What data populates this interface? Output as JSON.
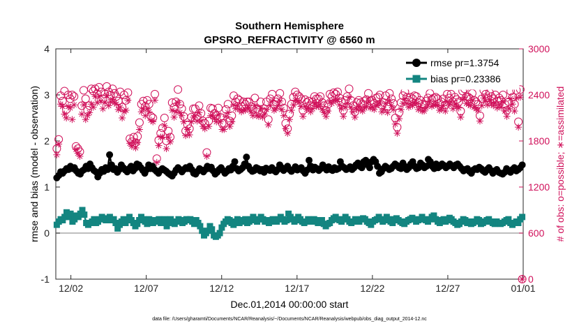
{
  "chart_data": {
    "type": "line",
    "title": "Southern Hemisphere",
    "subtitle": "GPSRO_REFRACTIVITY @ 6560 m",
    "xlabel": "Dec.01,2014 00:00:00 start",
    "ylabel_left": "rmse and bias (model - observation)",
    "ylabel_right": "# of obs: o=possible; ∗=assimilated",
    "footer": "data file: /Users/gharamti/Documents/NCAR/Reanalysis/~/Documents/NCAR/Reanalysis/webpub/obs_diag_output_2014-12.nc",
    "xlim": [
      0,
      31
    ],
    "ylim_left": [
      -1,
      4
    ],
    "ylim_right": [
      0,
      3000
    ],
    "x_ticks": [
      1,
      6,
      11,
      16,
      21,
      26,
      31
    ],
    "x_tick_labels": [
      "12/02",
      "12/07",
      "12/12",
      "12/17",
      "12/22",
      "12/27",
      "01/01"
    ],
    "y_ticks_left": [
      -1,
      0,
      1,
      2,
      3,
      4
    ],
    "y_ticks_right": [
      0,
      600,
      1200,
      1800,
      2400,
      3000
    ],
    "zero_line": 0,
    "colors": {
      "rmse": "#000000",
      "bias": "#138580",
      "obs": "#d0105a",
      "zero": "#a8a8a8"
    },
    "series": [
      {
        "name": "rmse",
        "legend": "rmse pr=1.3754",
        "axis": "left",
        "marker": "circle",
        "values": [
          1.2,
          1.25,
          1.33,
          1.3,
          1.35,
          1.4,
          1.38,
          1.45,
          1.4,
          1.42,
          1.35,
          1.3,
          1.28,
          1.35,
          1.38,
          1.45,
          1.4,
          1.5,
          1.42,
          1.36,
          1.33,
          1.22,
          1.3,
          1.38,
          1.34,
          1.42,
          1.38,
          1.7,
          1.48,
          1.38,
          1.4,
          1.32,
          1.38,
          1.48,
          1.42,
          1.37,
          1.33,
          1.4,
          1.45,
          1.35,
          1.4,
          1.5,
          1.48,
          1.42,
          1.36,
          1.3,
          1.38,
          1.48,
          1.4,
          1.45,
          1.38,
          1.34,
          1.3,
          1.36,
          1.4,
          1.37,
          1.34,
          1.3,
          1.27,
          1.24,
          1.3,
          1.37,
          1.42,
          1.38,
          1.33,
          1.38,
          1.42,
          1.4,
          1.45,
          1.38,
          1.3,
          1.28,
          1.34,
          1.4,
          1.37,
          1.33,
          1.38,
          1.45,
          1.4,
          1.43,
          1.35,
          1.28,
          1.32,
          1.38,
          1.42,
          1.36,
          1.3,
          1.34,
          1.4,
          1.37,
          1.45,
          1.55,
          1.4,
          1.35,
          1.38,
          1.42,
          1.5,
          1.65,
          1.45,
          1.38,
          1.34,
          1.36,
          1.42,
          1.4,
          1.35,
          1.38,
          1.32,
          1.41,
          1.38,
          1.36,
          1.42,
          1.36,
          1.33,
          1.38,
          1.48,
          1.42,
          1.36,
          1.4,
          1.45,
          1.38,
          1.34,
          1.38,
          1.44,
          1.37,
          1.4,
          1.42,
          1.35,
          1.3,
          1.37,
          1.58,
          1.45,
          1.37,
          1.43,
          1.4,
          1.36,
          1.4,
          1.48,
          1.42,
          1.37,
          1.44,
          1.38,
          1.36,
          1.42,
          1.38,
          1.4,
          1.55,
          1.45,
          1.42,
          1.38,
          1.4,
          1.44,
          1.38,
          1.42,
          1.48,
          1.52,
          1.45,
          1.42,
          1.55,
          1.58,
          1.48,
          1.42,
          1.55,
          1.6,
          1.55,
          1.45,
          1.3,
          1.33,
          1.4,
          1.45,
          1.42,
          1.38,
          1.4,
          1.45,
          1.5,
          1.47,
          1.42,
          1.4,
          1.52,
          1.45,
          1.38,
          1.42,
          1.5,
          1.55,
          1.45,
          1.4,
          1.42,
          1.52,
          1.48,
          1.42,
          1.45,
          1.6,
          1.55,
          1.45,
          1.4,
          1.5,
          1.42,
          1.45,
          1.5,
          1.47,
          1.42,
          1.45,
          1.5,
          1.46,
          1.42,
          1.48,
          1.5,
          1.45,
          1.4,
          1.35,
          1.38,
          1.4,
          1.34,
          1.3,
          1.37,
          1.4,
          1.38,
          1.43,
          1.4,
          1.35,
          1.32,
          1.38,
          1.42,
          1.36,
          1.3,
          1.35,
          1.38,
          1.32,
          1.3,
          1.28,
          1.32,
          1.4,
          1.35,
          1.32,
          1.38,
          1.42,
          1.35,
          1.38,
          1.42,
          1.48
        ]
      },
      {
        "name": "bias",
        "legend": "bias pr=0.23386",
        "axis": "left",
        "marker": "square",
        "values": [
          0.18,
          0.25,
          0.3,
          0.28,
          0.35,
          0.45,
          0.35,
          0.42,
          0.25,
          0.3,
          0.38,
          0.35,
          0.42,
          0.5,
          0.4,
          0.22,
          0.18,
          0.22,
          0.25,
          0.3,
          0.22,
          0.25,
          0.3,
          0.35,
          0.32,
          0.28,
          0.3,
          0.35,
          0.28,
          0.3,
          0.22,
          0.1,
          0.18,
          0.25,
          0.3,
          0.22,
          0.28,
          0.35,
          0.28,
          0.22,
          0.15,
          0.2,
          0.28,
          0.35,
          0.3,
          0.25,
          0.2,
          0.3,
          0.25,
          0.22,
          0.28,
          0.25,
          0.3,
          0.22,
          0.25,
          0.3,
          0.15,
          0.25,
          0.3,
          0.22,
          0.2,
          0.25,
          0.3,
          0.28,
          0.22,
          0.25,
          0.3,
          0.28,
          0.3,
          0.25,
          0.2,
          0.28,
          0.22,
          0.15,
          0.05,
          -0.05,
          0.0,
          0.05,
          0.15,
          0.08,
          -0.05,
          -0.08,
          -0.05,
          0.0,
          0.12,
          0.2,
          0.25,
          0.3,
          0.28,
          0.22,
          0.18,
          0.25,
          0.3,
          0.22,
          0.28,
          0.25,
          0.3,
          0.22,
          0.25,
          0.3,
          0.35,
          0.28,
          0.25,
          0.3,
          0.35,
          0.3,
          0.25,
          0.28,
          0.22,
          0.25,
          0.3,
          0.28,
          0.25,
          0.3,
          0.35,
          0.3,
          0.25,
          0.28,
          0.42,
          0.35,
          0.3,
          0.25,
          0.28,
          0.35,
          0.3,
          0.25,
          0.22,
          0.25,
          0.3,
          0.28,
          0.25,
          0.3,
          0.28,
          0.22,
          0.25,
          0.28,
          0.2,
          0.15,
          0.2,
          0.22,
          0.28,
          0.32,
          0.35,
          0.3,
          0.28,
          0.25,
          0.3,
          0.35,
          0.3,
          0.25,
          0.22,
          0.25,
          0.3,
          0.28,
          0.25,
          0.3,
          0.32,
          0.3,
          0.25,
          0.22,
          0.18,
          0.25,
          0.28,
          0.3,
          0.35,
          0.3,
          0.25,
          0.28,
          0.35,
          0.3,
          0.25,
          0.22,
          0.3,
          0.32,
          0.28,
          0.25,
          0.22,
          0.2,
          0.25,
          0.28,
          0.3,
          0.33,
          0.3,
          0.25,
          0.28,
          0.3,
          0.35,
          0.3,
          0.28,
          0.25,
          0.3,
          0.35,
          0.38,
          0.3,
          0.25,
          0.22,
          0.28,
          0.3,
          0.25,
          0.28,
          0.33,
          0.3,
          0.25,
          0.22,
          0.18,
          0.2,
          0.25,
          0.3,
          0.28,
          0.22,
          0.25,
          0.2,
          0.22,
          0.25,
          0.3,
          0.28,
          0.2,
          0.22,
          0.25,
          0.28,
          0.3,
          0.25,
          0.22,
          0.2,
          0.25,
          0.22,
          0.2,
          0.22,
          0.25,
          0.28,
          0.3,
          0.22,
          0.18,
          0.22,
          0.25,
          0.22,
          0.3,
          0.35
        ]
      },
      {
        "name": "obs_possible",
        "axis": "right",
        "marker": "open-circle",
        "values": [
          1700,
          1820,
          2390,
          2320,
          2450,
          2210,
          2400,
          2350,
          2400,
          2380,
          1730,
          1700,
          1660,
          2260,
          2460,
          2350,
          2200,
          2260,
          2480,
          2450,
          2480,
          2410,
          2500,
          2440,
          2350,
          2410,
          2510,
          2440,
          2400,
          2480,
          2420,
          2380,
          2320,
          2440,
          2240,
          2400,
          2330,
          2430,
          1830,
          1790,
          1850,
          1780,
          1860,
          2040,
          2280,
          2320,
          2250,
          2330,
          2280,
          2120,
          2100,
          2410,
          1570,
          1810,
          1900,
          1970,
          2100,
          1800,
          1930,
          1850,
          2300,
          2240,
          2310,
          2470,
          2280,
          2220,
          2120,
          1930,
          2010,
          1960,
          2110,
          2220,
          2220,
          2120,
          2260,
          2160,
          2060,
          2030,
          1650,
          2060,
          2230,
          2220,
          2160,
          2130,
          2230,
          2110,
          2030,
          2030,
          2210,
          2280,
          2060,
          2130,
          2390,
          2310,
          2350,
          2330,
          2250,
          2310,
          2280,
          2310,
          2310,
          2250,
          2210,
          2360,
          2220,
          2200,
          2310,
          2180,
          2220,
          2310,
          2080,
          2350,
          2410,
          2280,
          2310,
          2350,
          2420,
          2310,
          2230,
          2030,
          1960,
          2150,
          2280,
          2370,
          2440,
          2400,
          2380,
          2350,
          2200,
          2340,
          2300,
          2320,
          2260,
          2310,
          2380,
          2350,
          2350,
          2380,
          2300,
          2260,
          2200,
          2280,
          2410,
          2380,
          2430,
          2410,
          2440,
          2360,
          2310,
          2200,
          2330,
          2380,
          2480,
          2330,
          2260,
          2180,
          2300,
          2330,
          2300,
          2280,
          2320,
          2340,
          2420,
          2320,
          2330,
          2290,
          2360,
          2370,
          2400,
          2270,
          2300,
          2390,
          2250,
          2420,
          2350,
          2290,
          2100,
          1980,
          2170,
          2300,
          2390,
          2440,
          2370,
          2330,
          2370,
          2350,
          2390,
          2380,
          2300,
          2330,
          2280,
          2270,
          2320,
          2360,
          2420,
          2340,
          2360,
          2370,
          2350,
          2290,
          2310,
          2350,
          2270,
          2410,
          2360,
          2410,
          2310,
          2370,
          2340,
          2310,
          2190,
          2450,
          2480,
          2380,
          2370,
          2350,
          2420,
          2330,
          2310,
          2280,
          2130,
          2350,
          2460,
          2410,
          2360,
          2430,
          2380,
          2350,
          2400,
          2320,
          2360,
          2330,
          2400,
          2280,
          2200,
          2310,
          2450,
          2370,
          2280,
          2460,
          2050,
          2470,
          0
        ]
      },
      {
        "name": "obs_assimilated",
        "axis": "right",
        "marker": "asterisk",
        "values": [
          1620,
          1760,
          2280,
          2250,
          2150,
          2100,
          2250,
          2230,
          2080,
          2270,
          1690,
          1640,
          1600,
          2150,
          2270,
          2080,
          2130,
          2170,
          2280,
          2240,
          2380,
          2300,
          2380,
          2320,
          2220,
          2300,
          2390,
          2260,
          2310,
          2340,
          2300,
          2280,
          2210,
          2240,
          2100,
          2180,
          2200,
          2330,
          1770,
          1730,
          1780,
          1710,
          1780,
          1950,
          2180,
          2220,
          2130,
          2220,
          2180,
          2070,
          2050,
          2330,
          1520,
          1740,
          1850,
          1850,
          2000,
          1700,
          1850,
          1790,
          2200,
          2110,
          2180,
          2300,
          2170,
          2130,
          2050,
          1870,
          1950,
          1880,
          2050,
          2110,
          2130,
          2060,
          2170,
          2060,
          1990,
          1960,
          1600,
          1990,
          2130,
          2130,
          2090,
          2050,
          2140,
          2050,
          1950,
          1950,
          2120,
          2170,
          1990,
          2050,
          2270,
          2220,
          2260,
          2210,
          2180,
          2200,
          2200,
          2230,
          2230,
          2180,
          2130,
          2260,
          2130,
          2120,
          2220,
          2110,
          2150,
          2210,
          2010,
          2260,
          2320,
          2200,
          2220,
          2260,
          2320,
          2210,
          2130,
          1960,
          1900,
          2080,
          2200,
          2270,
          2330,
          2320,
          2300,
          2250,
          2120,
          2250,
          2210,
          2230,
          2180,
          2220,
          2290,
          2250,
          2250,
          2280,
          2210,
          2170,
          2120,
          2190,
          2310,
          2290,
          2330,
          2320,
          2340,
          2270,
          2220,
          2120,
          2240,
          2290,
          2370,
          2240,
          2180,
          2110,
          2210,
          2240,
          2210,
          2190,
          2230,
          2250,
          2320,
          2230,
          2240,
          2210,
          2260,
          2280,
          2300,
          2180,
          2210,
          2290,
          2170,
          2330,
          2260,
          2210,
          2020,
          1900,
          2090,
          2210,
          2290,
          2350,
          2290,
          2240,
          2280,
          2260,
          2300,
          2290,
          2210,
          2240,
          2190,
          2190,
          2230,
          2270,
          2320,
          2250,
          2270,
          2280,
          2260,
          2200,
          2220,
          2260,
          2190,
          2310,
          2270,
          2310,
          2220,
          2280,
          2250,
          2230,
          2110,
          2340,
          2370,
          2290,
          2280,
          2260,
          2330,
          2240,
          2220,
          2200,
          2060,
          2260,
          2360,
          2320,
          2270,
          2340,
          2290,
          2260,
          2300,
          2230,
          2270,
          2240,
          2310,
          2190,
          2120,
          2220,
          2350,
          2280,
          2190,
          2360,
          1980,
          2370,
          0
        ]
      }
    ]
  }
}
